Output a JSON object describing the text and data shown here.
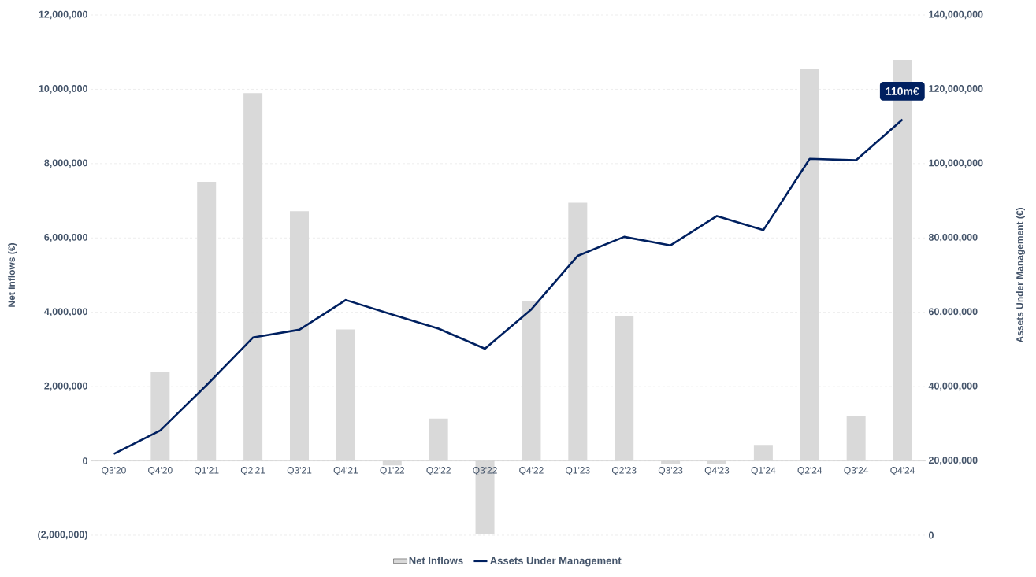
{
  "chart_data": {
    "type": "bar",
    "xlabel": null,
    "ylabel": "Net Inflows (€)",
    "y2label": "Assets Under Management (€)",
    "categories": [
      "Q3'20",
      "Q4'20",
      "Q1'21",
      "Q2'21",
      "Q3'21",
      "Q4'21",
      "Q1'22",
      "Q2'22",
      "Q3'22",
      "Q4'22",
      "Q1'23",
      "Q2'23",
      "Q3'23",
      "Q4'23",
      "Q1'24",
      "Q2'24",
      "Q3'24",
      "Q4'24"
    ],
    "series": [
      {
        "name": "Net Inflows",
        "color": "#d9d9d9",
        "values": [
          0,
          2400000,
          7510000,
          9900000,
          6720000,
          3540000,
          -120000,
          1140000,
          -1960000,
          4300000,
          6950000,
          3890000,
          -90000,
          -90000,
          430000,
          10540000,
          1210000,
          10790000
        ]
      },
      {
        "name": "Assets Under Management",
        "type": "line",
        "axis": "y2",
        "color": "#002060",
        "values": [
          21900000,
          28200000,
          40400000,
          53200000,
          55300000,
          63300000,
          59400000,
          55600000,
          50200000,
          60800000,
          75200000,
          80300000,
          78000000,
          85900000,
          82100000,
          101300000,
          100900000,
          111900000
        ]
      }
    ],
    "ylim": [
      -2000000,
      12000000
    ],
    "yticks": [
      {
        "value": -2000000,
        "label": "(2,000,000)"
      },
      {
        "value": 0,
        "label": "0"
      },
      {
        "value": 2000000,
        "label": "2,000,000"
      },
      {
        "value": 4000000,
        "label": "4,000,000"
      },
      {
        "value": 6000000,
        "label": "6,000,000"
      },
      {
        "value": 8000000,
        "label": "8,000,000"
      },
      {
        "value": 10000000,
        "label": "10,000,000"
      },
      {
        "value": 12000000,
        "label": "12,000,000"
      }
    ],
    "y2lim": [
      0,
      140000000
    ],
    "y2ticks": [
      {
        "value": 0,
        "label": "0"
      },
      {
        "value": 20000000,
        "label": "20,000,000"
      },
      {
        "value": 40000000,
        "label": "40,000,000"
      },
      {
        "value": 60000000,
        "label": "60,000,000"
      },
      {
        "value": 80000000,
        "label": "80,000,000"
      },
      {
        "value": 100000000,
        "label": "100,000,000"
      },
      {
        "value": 120000000,
        "label": "120,000,000"
      },
      {
        "value": 140000000,
        "label": "140,000,000"
      }
    ],
    "annotations": [
      "110m€"
    ],
    "grid": "y",
    "legend": "bottom"
  }
}
